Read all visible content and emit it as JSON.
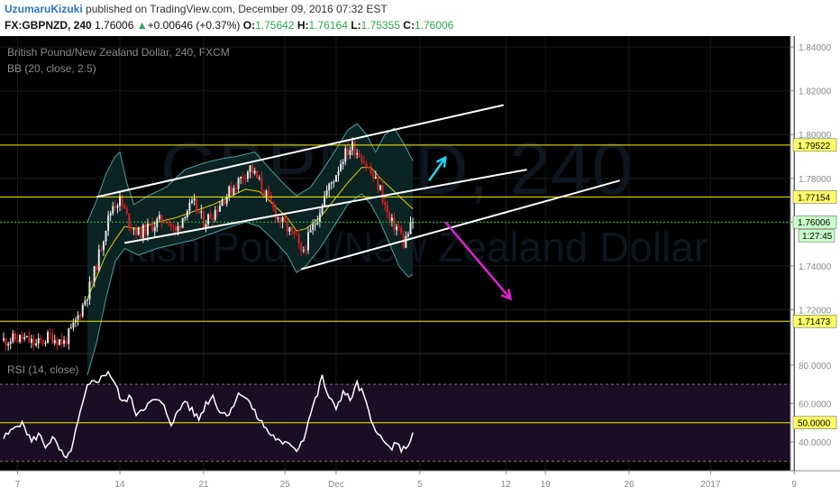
{
  "header": {
    "author": "UzumaruKizuki",
    "published_text": "published on TradingView.com, December 09, 2016 07:32 EST",
    "symbol": "FX:GBPNZD, 240",
    "last": "1.76006",
    "change": "+0.00646 (+0.37%)",
    "o_label": "O:",
    "o": "1.75642",
    "h_label": "H:",
    "h": "1.76164",
    "l_label": "L:",
    "l": "1.75355",
    "c_label": "C:",
    "c": "1.76006"
  },
  "colors": {
    "background": "#000000",
    "level_line": "#f5f500",
    "bb_band": "#4aa3a3",
    "bb_basis": "#e0d200",
    "up_candle": "#e8e8e8",
    "down_candle": "#d81f1f",
    "channel": "#ffffff",
    "arrow_up": "#22d3ee",
    "arrow_down": "#e020d0",
    "rsi_line": "#ffffff",
    "rsi_fill": "#1c0d26",
    "price_tag": "#ffff66"
  },
  "chart_data": [
    {
      "type": "candlestick",
      "title": "British Pound/New Zealand Dollar, 240, FXCM",
      "indicator": "BB (20, close, 2.5)",
      "watermark_symbol": "GBPNZD, 240",
      "watermark_name": "British Pound/New Zealand Dollar",
      "x_tick_labels": [
        "7",
        "14",
        "21",
        "25",
        "Dec",
        "5",
        "12",
        "19",
        "26",
        "2017",
        "9"
      ],
      "y_tick_labels": [
        "1.84000",
        "1.82000",
        "1.80000",
        "1.78000",
        "1.76000",
        "1.74000",
        "1.72000"
      ],
      "ylim": [
        1.7,
        1.845
      ],
      "levels": [
        {
          "label": "1.79522",
          "value": 1.79522
        },
        {
          "label": "1.77154",
          "value": 1.77154
        },
        {
          "label": "1.71473",
          "value": 1.71473
        }
      ],
      "last_price": {
        "label": "1.76006",
        "value": 1.76006
      },
      "countdown": "1:27:45",
      "close_path": [
        [
          0,
          1.706
        ],
        [
          8,
          1.707
        ],
        [
          14,
          1.704
        ],
        [
          20,
          1.708
        ],
        [
          26,
          1.705
        ],
        [
          30,
          1.712
        ],
        [
          34,
          1.722
        ],
        [
          38,
          1.733
        ],
        [
          41,
          1.745
        ],
        [
          44,
          1.758
        ],
        [
          47,
          1.768
        ],
        [
          50,
          1.77
        ],
        [
          54,
          1.76
        ],
        [
          58,
          1.755
        ],
        [
          62,
          1.757
        ],
        [
          66,
          1.76
        ],
        [
          70,
          1.762
        ],
        [
          74,
          1.755
        ],
        [
          78,
          1.765
        ],
        [
          82,
          1.768
        ],
        [
          86,
          1.76
        ],
        [
          90,
          1.764
        ],
        [
          94,
          1.77
        ],
        [
          98,
          1.775
        ],
        [
          102,
          1.78
        ],
        [
          106,
          1.785
        ],
        [
          110,
          1.778
        ],
        [
          114,
          1.77
        ],
        [
          118,
          1.762
        ],
        [
          122,
          1.757
        ],
        [
          126,
          1.752
        ],
        [
          128,
          1.745
        ],
        [
          130,
          1.75
        ],
        [
          134,
          1.76
        ],
        [
          138,
          1.772
        ],
        [
          142,
          1.78
        ],
        [
          146,
          1.79
        ],
        [
          150,
          1.795
        ],
        [
          154,
          1.79
        ],
        [
          158,
          1.782
        ],
        [
          162,
          1.775
        ],
        [
          166,
          1.76
        ],
        [
          170,
          1.757
        ],
        [
          172,
          1.75
        ],
        [
          174,
          1.755
        ],
        [
          176,
          1.76
        ]
      ],
      "bb_upper": [
        [
          36,
          1.76
        ],
        [
          40,
          1.77
        ],
        [
          44,
          1.782
        ],
        [
          48,
          1.79
        ],
        [
          50,
          1.792
        ],
        [
          53,
          1.778
        ],
        [
          56,
          1.768
        ],
        [
          62,
          1.772
        ],
        [
          70,
          1.776
        ],
        [
          78,
          1.784
        ],
        [
          86,
          1.787
        ],
        [
          94,
          1.789
        ],
        [
          100,
          1.79
        ],
        [
          108,
          1.792
        ],
        [
          114,
          1.785
        ],
        [
          120,
          1.778
        ],
        [
          126,
          1.772
        ],
        [
          132,
          1.776
        ],
        [
          138,
          1.785
        ],
        [
          144,
          1.795
        ],
        [
          148,
          1.802
        ],
        [
          152,
          1.805
        ],
        [
          156,
          1.8
        ],
        [
          160,
          1.792
        ],
        [
          164,
          1.8
        ],
        [
          168,
          1.803
        ],
        [
          172,
          1.796
        ],
        [
          176,
          1.788
        ]
      ],
      "bb_lower": [
        [
          36,
          1.69
        ],
        [
          40,
          1.705
        ],
        [
          44,
          1.725
        ],
        [
          48,
          1.742
        ],
        [
          52,
          1.748
        ],
        [
          58,
          1.745
        ],
        [
          66,
          1.748
        ],
        [
          74,
          1.75
        ],
        [
          82,
          1.752
        ],
        [
          90,
          1.755
        ],
        [
          98,
          1.758
        ],
        [
          104,
          1.76
        ],
        [
          110,
          1.758
        ],
        [
          116,
          1.752
        ],
        [
          122,
          1.745
        ],
        [
          126,
          1.737
        ],
        [
          130,
          1.74
        ],
        [
          136,
          1.748
        ],
        [
          142,
          1.758
        ],
        [
          148,
          1.768
        ],
        [
          154,
          1.773
        ],
        [
          158,
          1.768
        ],
        [
          162,
          1.76
        ],
        [
          166,
          1.75
        ],
        [
          170,
          1.74
        ],
        [
          174,
          1.735
        ],
        [
          176,
          1.736
        ]
      ],
      "bb_basis": [
        [
          36,
          1.725
        ],
        [
          40,
          1.735
        ],
        [
          44,
          1.745
        ],
        [
          48,
          1.752
        ],
        [
          52,
          1.758
        ],
        [
          58,
          1.757
        ],
        [
          66,
          1.76
        ],
        [
          74,
          1.762
        ],
        [
          82,
          1.765
        ],
        [
          90,
          1.768
        ],
        [
          98,
          1.772
        ],
        [
          104,
          1.775
        ],
        [
          110,
          1.774
        ],
        [
          116,
          1.768
        ],
        [
          122,
          1.762
        ],
        [
          126,
          1.756
        ],
        [
          130,
          1.757
        ],
        [
          136,
          1.762
        ],
        [
          142,
          1.77
        ],
        [
          148,
          1.778
        ],
        [
          154,
          1.785
        ],
        [
          158,
          1.785
        ],
        [
          162,
          1.78
        ],
        [
          166,
          1.776
        ],
        [
          170,
          1.772
        ],
        [
          174,
          1.768
        ],
        [
          176,
          1.766
        ]
      ],
      "channels": [
        {
          "from": [
            40,
            1.7715
          ],
          "to": [
            215,
            1.8135
          ]
        },
        {
          "from": [
            52,
            1.7505
          ],
          "to": [
            225,
            1.784
          ]
        },
        {
          "from": [
            128,
            1.7385
          ],
          "to": [
            265,
            1.779
          ]
        }
      ],
      "arrows": [
        {
          "direction": "up",
          "from": [
            183,
            1.779
          ],
          "to": [
            190,
            1.7895
          ]
        },
        {
          "direction": "down",
          "from": [
            190,
            1.76
          ],
          "to": [
            218,
            1.725
          ]
        }
      ]
    },
    {
      "type": "line",
      "title": "RSI (14, close)",
      "y_tick_labels": [
        "80.0000",
        "60.0000",
        "40.0000"
      ],
      "ylim": [
        25,
        86
      ],
      "band": [
        30,
        70
      ],
      "level": {
        "label": "50.0000",
        "value": 50
      },
      "values": [
        [
          0,
          42
        ],
        [
          3,
          45
        ],
        [
          6,
          50
        ],
        [
          9,
          48
        ],
        [
          12,
          40
        ],
        [
          15,
          44
        ],
        [
          18,
          38
        ],
        [
          21,
          42
        ],
        [
          24,
          36
        ],
        [
          27,
          30
        ],
        [
          30,
          40
        ],
        [
          33,
          55
        ],
        [
          36,
          68
        ],
        [
          39,
          72
        ],
        [
          42,
          73
        ],
        [
          45,
          77
        ],
        [
          48,
          70
        ],
        [
          51,
          60
        ],
        [
          54,
          64
        ],
        [
          57,
          55
        ],
        [
          60,
          58
        ],
        [
          63,
          60
        ],
        [
          66,
          62
        ],
        [
          69,
          58
        ],
        [
          72,
          50
        ],
        [
          75,
          55
        ],
        [
          78,
          62
        ],
        [
          81,
          56
        ],
        [
          84,
          52
        ],
        [
          87,
          60
        ],
        [
          90,
          64
        ],
        [
          93,
          56
        ],
        [
          96,
          54
        ],
        [
          99,
          60
        ],
        [
          102,
          66
        ],
        [
          105,
          62
        ],
        [
          108,
          55
        ],
        [
          111,
          50
        ],
        [
          114,
          45
        ],
        [
          117,
          42
        ],
        [
          120,
          38
        ],
        [
          123,
          40
        ],
        [
          126,
          36
        ],
        [
          129,
          42
        ],
        [
          132,
          55
        ],
        [
          135,
          65
        ],
        [
          137,
          74
        ],
        [
          140,
          62
        ],
        [
          143,
          58
        ],
        [
          146,
          66
        ],
        [
          149,
          62
        ],
        [
          152,
          70
        ],
        [
          155,
          64
        ],
        [
          158,
          50
        ],
        [
          161,
          46
        ],
        [
          163,
          40
        ],
        [
          166,
          37
        ],
        [
          169,
          38
        ],
        [
          172,
          36
        ],
        [
          174,
          39
        ],
        [
          176,
          44
        ]
      ]
    }
  ]
}
